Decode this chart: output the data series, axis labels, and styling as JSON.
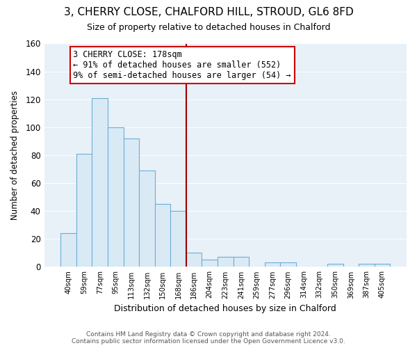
{
  "title": "3, CHERRY CLOSE, CHALFORD HILL, STROUD, GL6 8FD",
  "subtitle": "Size of property relative to detached houses in Chalford",
  "xlabel": "Distribution of detached houses by size in Chalford",
  "ylabel": "Number of detached properties",
  "bar_labels": [
    "40sqm",
    "59sqm",
    "77sqm",
    "95sqm",
    "113sqm",
    "132sqm",
    "150sqm",
    "168sqm",
    "186sqm",
    "204sqm",
    "223sqm",
    "241sqm",
    "259sqm",
    "277sqm",
    "296sqm",
    "314sqm",
    "332sqm",
    "350sqm",
    "369sqm",
    "387sqm",
    "405sqm"
  ],
  "bar_heights": [
    24,
    81,
    121,
    100,
    92,
    69,
    45,
    40,
    10,
    5,
    7,
    7,
    0,
    3,
    3,
    0,
    0,
    2,
    0,
    2,
    2
  ],
  "bar_color": "#daeaf5",
  "bar_edge_color": "#6aafd6",
  "vline_color": "#990000",
  "annotation_title": "3 CHERRY CLOSE: 178sqm",
  "annotation_line1": "← 91% of detached houses are smaller (552)",
  "annotation_line2": "9% of semi-detached houses are larger (54) →",
  "annotation_box_color": "#ffffff",
  "annotation_box_edge": "#cc0000",
  "ylim": [
    0,
    160
  ],
  "yticks": [
    0,
    20,
    40,
    60,
    80,
    100,
    120,
    140,
    160
  ],
  "background_color": "#ffffff",
  "plot_bg_color": "#e8f0f8",
  "grid_color": "#ffffff",
  "footer1": "Contains HM Land Registry data © Crown copyright and database right 2024.",
  "footer2": "Contains public sector information licensed under the Open Government Licence v3.0."
}
